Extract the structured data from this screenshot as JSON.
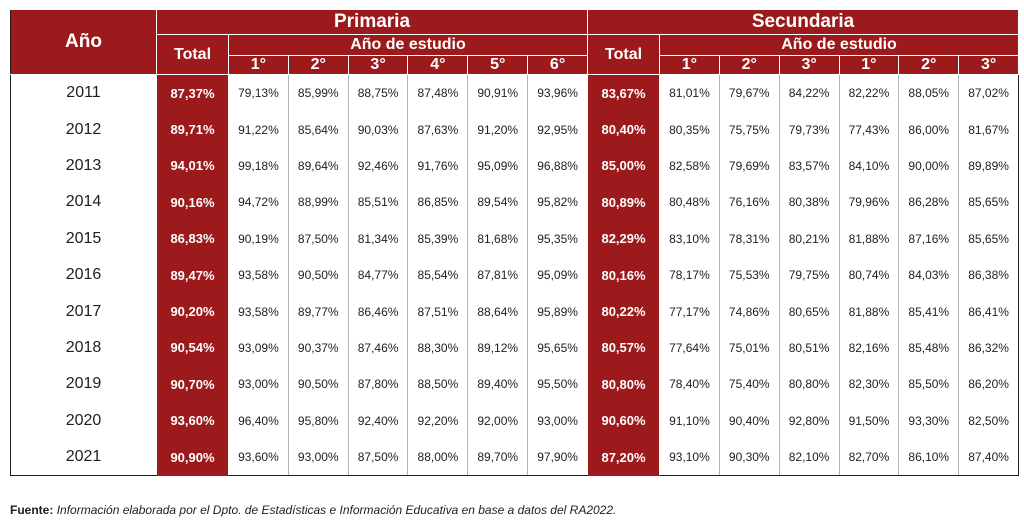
{
  "header": {
    "year_label": "Año",
    "primaria_title": "Primaria",
    "secundaria_title": "Secundaria",
    "total_label": "Total",
    "study_year_label": "Año de estudio",
    "primaria_grades": [
      "1°",
      "2°",
      "3°",
      "4°",
      "5°",
      "6°"
    ],
    "secundaria_grades": [
      "1°",
      "2°",
      "3°",
      "1°",
      "2°",
      "3°"
    ]
  },
  "rows": [
    {
      "year": "2011",
      "prim_total": "87,37%",
      "prim": [
        "79,13%",
        "85,99%",
        "88,75%",
        "87,48%",
        "90,91%",
        "93,96%"
      ],
      "sec_total": "83,67%",
      "sec": [
        "81,01%",
        "79,67%",
        "84,22%",
        "82,22%",
        "88,05%",
        "87,02%"
      ]
    },
    {
      "year": "2012",
      "prim_total": "89,71%",
      "prim": [
        "91,22%",
        "85,64%",
        "90,03%",
        "87,63%",
        "91,20%",
        "92,95%"
      ],
      "sec_total": "80,40%",
      "sec": [
        "80,35%",
        "75,75%",
        "79,73%",
        "77,43%",
        "86,00%",
        "81,67%"
      ]
    },
    {
      "year": "2013",
      "prim_total": "94,01%",
      "prim": [
        "99,18%",
        "89,64%",
        "92,46%",
        "91,76%",
        "95,09%",
        "96,88%"
      ],
      "sec_total": "85,00%",
      "sec": [
        "82,58%",
        "79,69%",
        "83,57%",
        "84,10%",
        "90,00%",
        "89,89%"
      ]
    },
    {
      "year": "2014",
      "prim_total": "90,16%",
      "prim": [
        "94,72%",
        "88,99%",
        "85,51%",
        "86,85%",
        "89,54%",
        "95,82%"
      ],
      "sec_total": "80,89%",
      "sec": [
        "80,48%",
        "76,16%",
        "80,38%",
        "79,96%",
        "86,28%",
        "85,65%"
      ]
    },
    {
      "year": "2015",
      "prim_total": "86,83%",
      "prim": [
        "90,19%",
        "87,50%",
        "81,34%",
        "85,39%",
        "81,68%",
        "95,35%"
      ],
      "sec_total": "82,29%",
      "sec": [
        "83,10%",
        "78,31%",
        "80,21%",
        "81,88%",
        "87,16%",
        "85,65%"
      ]
    },
    {
      "year": "2016",
      "prim_total": "89,47%",
      "prim": [
        "93,58%",
        "90,50%",
        "84,77%",
        "85,54%",
        "87,81%",
        "95,09%"
      ],
      "sec_total": "80,16%",
      "sec": [
        "78,17%",
        "75,53%",
        "79,75%",
        "80,74%",
        "84,03%",
        "86,38%"
      ]
    },
    {
      "year": "2017",
      "prim_total": "90,20%",
      "prim": [
        "93,58%",
        "89,77%",
        "86,46%",
        "87,51%",
        "88,64%",
        "95,89%"
      ],
      "sec_total": "80,22%",
      "sec": [
        "77,17%",
        "74,86%",
        "80,65%",
        "81,88%",
        "85,41%",
        "86,41%"
      ]
    },
    {
      "year": "2018",
      "prim_total": "90,54%",
      "prim": [
        "93,09%",
        "90,37%",
        "87,46%",
        "88,30%",
        "89,12%",
        "95,65%"
      ],
      "sec_total": "80,57%",
      "sec": [
        "77,64%",
        "75,01%",
        "80,51%",
        "82,16%",
        "85,48%",
        "86,32%"
      ]
    },
    {
      "year": "2019",
      "prim_total": "90,70%",
      "prim": [
        "93,00%",
        "90,50%",
        "87,80%",
        "88,50%",
        "89,40%",
        "95,50%"
      ],
      "sec_total": "80,80%",
      "sec": [
        "78,40%",
        "75,40%",
        "80,80%",
        "82,30%",
        "85,50%",
        "86,20%"
      ]
    },
    {
      "year": "2020",
      "prim_total": "93,60%",
      "prim": [
        "96,40%",
        "95,80%",
        "92,40%",
        "92,20%",
        "92,00%",
        "93,00%"
      ],
      "sec_total": "90,60%",
      "sec": [
        "91,10%",
        "90,40%",
        "92,80%",
        "91,50%",
        "93,30%",
        "82,50%"
      ]
    },
    {
      "year": "2021",
      "prim_total": "90,90%",
      "prim": [
        "93,60%",
        "93,00%",
        "87,50%",
        "88,00%",
        "89,70%",
        "97,90%"
      ],
      "sec_total": "87,20%",
      "sec": [
        "93,10%",
        "90,30%",
        "82,10%",
        "82,70%",
        "86,10%",
        "87,40%"
      ]
    }
  ],
  "source": {
    "label": "Fuente:",
    "text": "Información elaborada por el Dpto. de Estadísticas e Información Educativa en base a datos del RA2022."
  },
  "colors": {
    "header_bg": "#9c1a1c",
    "header_text": "#ffffff",
    "body_text": "#1e1e1e"
  }
}
